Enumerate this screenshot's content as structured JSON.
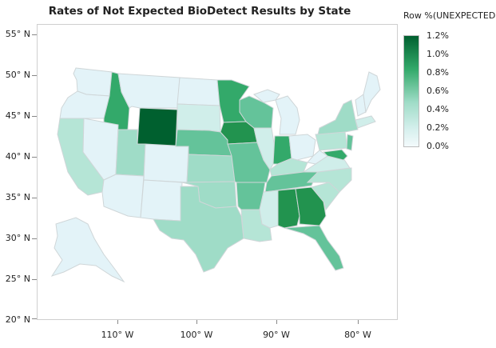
{
  "title": "Rates of Not Expected BioDetect Results by State",
  "legend": {
    "title": "Row %(UNEXPECTED)",
    "labels": [
      "1.2%",
      "1.0%",
      "0.8%",
      "0.6%",
      "0.4%",
      "0.2%",
      "0.0%"
    ],
    "color_low": "#eef8fb",
    "color_high": "#00602f"
  },
  "y_axis_labels": [
    "55° N",
    "50° N",
    "45° N",
    "40° N",
    "35° N",
    "30° N",
    "25° N",
    "20° N"
  ],
  "x_axis_labels": [
    "110° W",
    "100° W",
    "90° W",
    "80° W"
  ],
  "state_colors": {
    "very_low": "#e3f3f8",
    "low": "#d0eeea",
    "mid_low": "#b5e5d6",
    "mid": "#9fdcc7",
    "mid_high": "#64c39a",
    "high": "#33a96a",
    "very_high": "#22934f",
    "max": "#00602f"
  }
}
